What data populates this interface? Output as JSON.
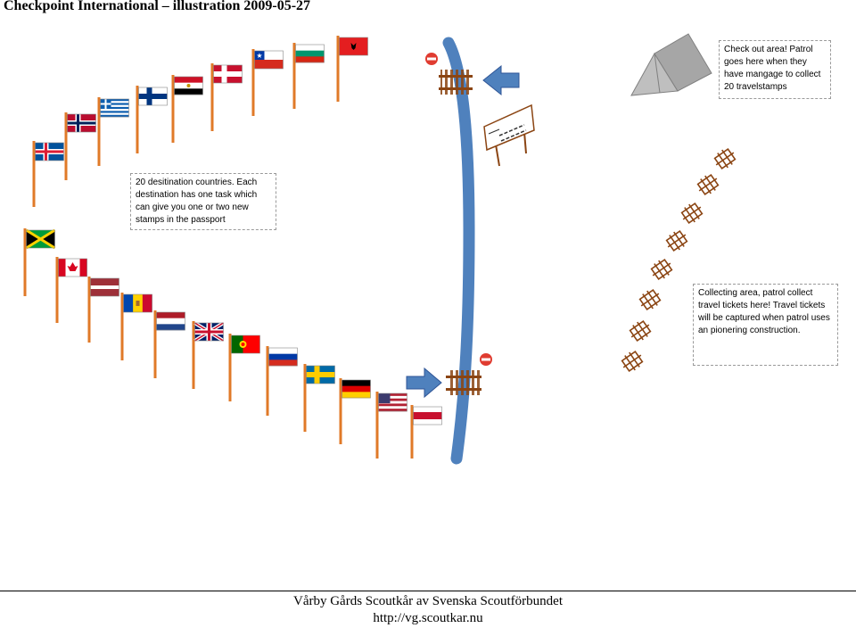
{
  "title": "Checkpoint International – illustration 2009-05-27",
  "notes": {
    "destinations": "20 desitination countries. Each destination has one task which can give you one or two new stamps in the passport",
    "checkout": "Check out area! Patrol goes here when they have mangage to collect 20 travelstamps",
    "collecting": "Collecting area, patrol collect travel tickets here! Travel tickets will be captured when patrol uses an pionering construction."
  },
  "flags": [
    "iceland",
    "norway",
    "greece",
    "finland",
    "egypt",
    "denmark",
    "chile",
    "bulgaria",
    "albania",
    "jamaica",
    "canada",
    "latvia",
    "moldova",
    "netherlands",
    "united-kingdom",
    "portugal",
    "russia",
    "sweden",
    "germany",
    "usa",
    "red-white-flag"
  ],
  "icons": [
    "no-entry-sign-icon",
    "blue-arrow-icon",
    "railway-crossing-icon",
    "sign-board-icon",
    "tent-icon",
    "ladder-trestle-icon"
  ],
  "colors": {
    "river": "#4f81bd",
    "pole": "#e07a28",
    "arrow": "#4f81bd",
    "track": "#8b4513",
    "tent": "#a6a6a6"
  },
  "footer": {
    "org": "Vårby Gårds Scoutkår av Svenska Scoutförbundet",
    "url": "http://vg.scoutkar.nu"
  }
}
